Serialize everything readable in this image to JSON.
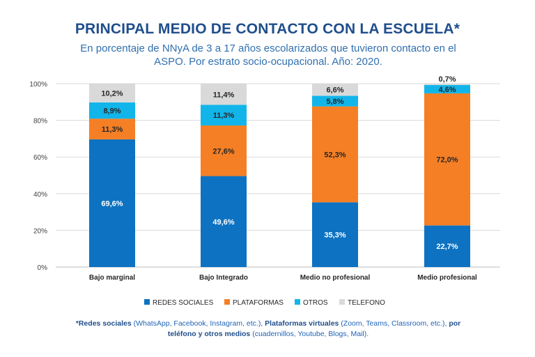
{
  "title": "PRINCIPAL MEDIO DE CONTACTO CON LA ESCUELA*",
  "subtitle_line1": "En porcentaje de NNyA de 3 a 17 años escolarizados que tuvieron contacto en el",
  "subtitle_line2": "ASPO. Por estrato socio-ocupacional. Año: 2020.",
  "colors": {
    "redes": "#0d72c1",
    "plataformas": "#f57f25",
    "otros": "#12b5ea",
    "telefono": "#d9d9d9"
  },
  "chart_data": {
    "type": "bar",
    "stacked": true,
    "categories": [
      "Bajo marginal",
      "Bajo Integrado",
      "Medio no profesional",
      "Medio profesional"
    ],
    "series": [
      {
        "name": "REDES SOCIALES",
        "values": [
          69.6,
          49.6,
          35.3,
          22.7
        ],
        "labels": [
          "69,6%",
          "49,6%",
          "35,3%",
          "22,7%"
        ]
      },
      {
        "name": "PLATAFORMAS",
        "values": [
          11.3,
          27.6,
          52.3,
          72.0
        ],
        "labels": [
          "11,3%",
          "27,6%",
          "52,3%",
          "72,0%"
        ]
      },
      {
        "name": "OTROS",
        "values": [
          8.9,
          11.3,
          5.8,
          4.6
        ],
        "labels": [
          "8,9%",
          "11,3%",
          "5,8%",
          "4,6%"
        ]
      },
      {
        "name": "TELEFONO",
        "values": [
          10.2,
          11.4,
          6.6,
          0.7
        ],
        "labels": [
          "10,2%",
          "11,4%",
          "6,6%",
          "0,7%"
        ]
      }
    ],
    "yticks": [
      "0%",
      "20%",
      "40%",
      "60%",
      "80%",
      "100%"
    ],
    "ylim": [
      0,
      100
    ],
    "legend_position": "bottom"
  },
  "note": {
    "p1": "*Redes sociales",
    "p2": " (WhatsApp, Facebook, Instagram, etc.), ",
    "p3": "Plataformas virtuales",
    "p4": " (Zoom, Teams, Classroom, etc.), ",
    "p5": "por teléfono y otros medios",
    "p6": " (cuadernillos, Youtube, Blogs, Mail)",
    "p7": "."
  }
}
